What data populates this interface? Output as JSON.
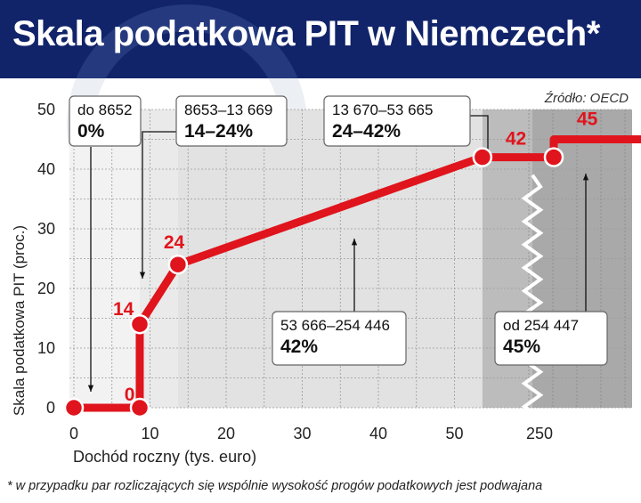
{
  "title": "Skala podatkowa PIT w Niemczech*",
  "source": "Źródło: OECD",
  "footnote": "* w przypadku par rozliczających się wspólnie wysokość progów podatkowych jest podwajana",
  "colors": {
    "header": "#11246a",
    "line": "#e0141c",
    "band_light": "#e2e2e2",
    "band_mid": "#d2d2d2",
    "band_dark": "#bcbcbc",
    "band_darker": "#a9a9a9"
  },
  "chart_data": {
    "type": "line",
    "title": "Skala podatkowa PIT w Niemczech*",
    "xlabel": "Dochód roczny (tys. euro)",
    "ylabel": "Skala podatkowa PIT (proc.)",
    "x_ticks": [
      "0",
      "10",
      "20",
      "30",
      "40",
      "50",
      "250"
    ],
    "y_ticks": [
      "0",
      "10",
      "20",
      "30",
      "40",
      "50"
    ],
    "ylim": [
      0,
      50
    ],
    "x_axis_break": "between 53.666 and 250",
    "grid": true,
    "series": [
      {
        "x": [
          0,
          8.652,
          8.653,
          13.669,
          53.665,
          53.666,
          254.446,
          254.447,
          300
        ],
        "y": [
          0,
          0,
          14,
          24,
          42,
          42,
          42,
          45,
          45
        ]
      }
    ],
    "data_labels": [
      {
        "x": 5,
        "y": 0,
        "text": "0"
      },
      {
        "x": 8.653,
        "y": 14,
        "text": "14"
      },
      {
        "x": 13.669,
        "y": 24,
        "text": "24"
      },
      {
        "x": 53.666,
        "y": 42,
        "text": "42"
      },
      {
        "x": 254.447,
        "y": 45,
        "text": "45"
      }
    ],
    "annotations": [
      {
        "range": "do 8652",
        "rate": "0%"
      },
      {
        "range": "8653–13 669",
        "rate": "14–24%"
      },
      {
        "range": "13 670–53 665",
        "rate": "24–42%"
      },
      {
        "range": "53 666–254 446",
        "rate": "42%"
      },
      {
        "range": "od 254 447",
        "rate": "45%"
      }
    ]
  }
}
